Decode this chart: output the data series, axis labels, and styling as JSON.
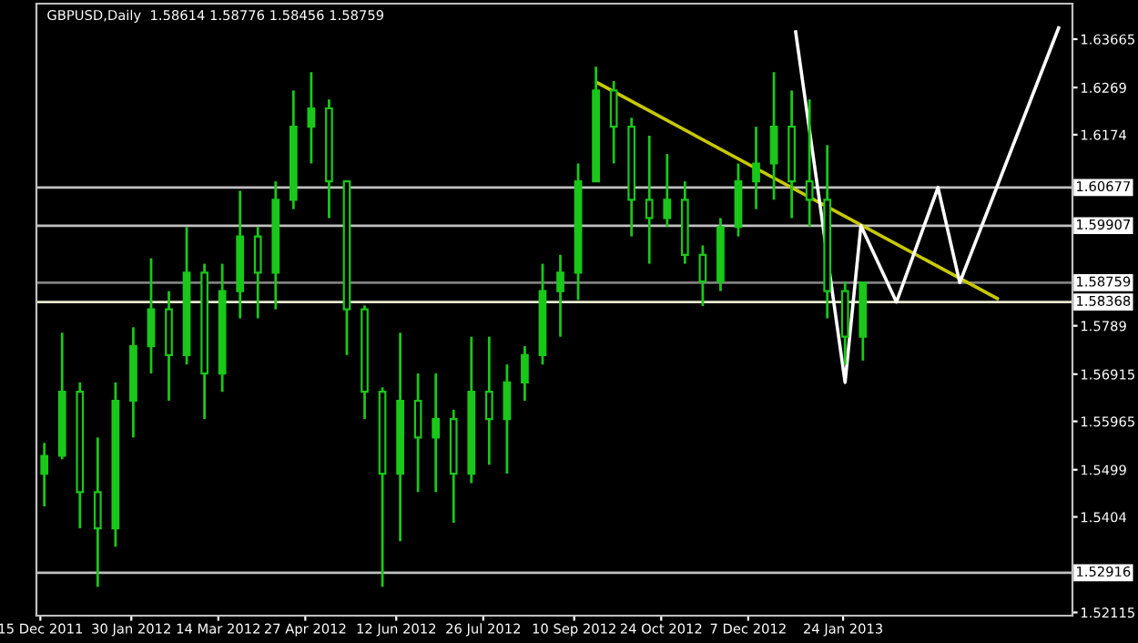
{
  "chart_data": {
    "type": "candlestick",
    "title": "GBPUSD,Daily  1.58614 1.58776 1.58456 1.58759",
    "x": [
      "2011-12-17",
      "2011-12-26",
      "2012-01-04",
      "2012-01-13",
      "2012-01-22",
      "2012-01-31",
      "2012-02-09",
      "2012-02-18",
      "2012-02-27",
      "2012-03-07",
      "2012-03-16",
      "2012-03-25",
      "2012-04-03",
      "2012-04-12",
      "2012-04-21",
      "2012-04-30",
      "2012-05-09",
      "2012-05-18",
      "2012-05-27",
      "2012-06-05",
      "2012-06-14",
      "2012-06-23",
      "2012-07-02",
      "2012-07-11",
      "2012-07-20",
      "2012-07-29",
      "2012-08-07",
      "2012-08-16",
      "2012-08-25",
      "2012-09-03",
      "2012-09-12",
      "2012-09-21",
      "2012-09-30",
      "2012-10-09",
      "2012-10-18",
      "2012-10-27",
      "2012-11-05",
      "2012-11-14",
      "2012-11-23",
      "2012-12-02",
      "2012-12-11",
      "2012-12-20",
      "2012-12-29",
      "2013-01-07",
      "2013-01-16",
      "2013-01-25",
      "2013-02-03"
    ],
    "series": [
      {
        "color": "#19c819",
        "ohlc": [
          [
            1.5491,
            1.5553,
            1.5425,
            1.5527
          ],
          [
            1.5527,
            1.5775,
            1.552,
            1.5656
          ],
          [
            1.5656,
            1.5675,
            1.5381,
            1.5454
          ],
          [
            1.5454,
            1.5564,
            1.5263,
            1.5381
          ],
          [
            1.5381,
            1.5675,
            1.5344,
            1.5638
          ],
          [
            1.5638,
            1.5786,
            1.5564,
            1.5748
          ],
          [
            1.5748,
            1.5925,
            1.5693,
            1.5822
          ],
          [
            1.5822,
            1.5859,
            1.5638,
            1.573
          ],
          [
            1.573,
            1.5988,
            1.5711,
            1.5896
          ],
          [
            1.5896,
            1.5914,
            1.5601,
            1.5693
          ],
          [
            1.5693,
            1.5914,
            1.5656,
            1.5859
          ],
          [
            1.5859,
            1.6061,
            1.5804,
            1.5969
          ],
          [
            1.5969,
            1.5988,
            1.5804,
            1.5896
          ],
          [
            1.5896,
            1.608,
            1.5822,
            1.6043
          ],
          [
            1.6043,
            1.6263,
            1.6024,
            1.619
          ],
          [
            1.619,
            1.63,
            1.6116,
            1.6227
          ],
          [
            1.6227,
            1.6245,
            1.6006,
            1.608
          ],
          [
            1.608,
            1.608,
            1.573,
            1.5822
          ],
          [
            1.5822,
            1.583,
            1.5601,
            1.5656
          ],
          [
            1.5656,
            1.5665,
            1.5263,
            1.5491
          ],
          [
            1.5491,
            1.5775,
            1.5355,
            1.5638
          ],
          [
            1.5638,
            1.5693,
            1.5454,
            1.5564
          ],
          [
            1.5564,
            1.5693,
            1.5454,
            1.5601
          ],
          [
            1.5601,
            1.562,
            1.5392,
            1.5491
          ],
          [
            1.5491,
            1.5767,
            1.5472,
            1.5656
          ],
          [
            1.5656,
            1.5767,
            1.5509,
            1.5601
          ],
          [
            1.5601,
            1.5711,
            1.5491,
            1.5675
          ],
          [
            1.5675,
            1.5748,
            1.5638,
            1.573
          ],
          [
            1.573,
            1.5914,
            1.5711,
            1.5859
          ],
          [
            1.5859,
            1.5932,
            1.5767,
            1.5896
          ],
          [
            1.5896,
            1.6116,
            1.5841,
            1.608
          ],
          [
            1.608,
            1.6311,
            1.608,
            1.6263
          ],
          [
            1.6263,
            1.6282,
            1.6116,
            1.619
          ],
          [
            1.619,
            1.6208,
            1.5969,
            1.6043
          ],
          [
            1.6043,
            1.6172,
            1.5914,
            1.6006
          ],
          [
            1.6006,
            1.6135,
            1.5988,
            1.6043
          ],
          [
            1.6043,
            1.608,
            1.5914,
            1.5932
          ],
          [
            1.5932,
            1.5951,
            1.5829,
            1.5878
          ],
          [
            1.5878,
            1.6006,
            1.5859,
            1.5988
          ],
          [
            1.5988,
            1.6116,
            1.5969,
            1.608
          ],
          [
            1.608,
            1.619,
            1.6024,
            1.6116
          ],
          [
            1.6116,
            1.63,
            1.6043,
            1.619
          ],
          [
            1.619,
            1.6263,
            1.6006,
            1.608
          ],
          [
            1.608,
            1.6245,
            1.5988,
            1.6043
          ],
          [
            1.6043,
            1.6153,
            1.5804,
            1.5859
          ],
          [
            1.5859,
            1.5878,
            1.5711,
            1.5767
          ],
          [
            1.5767,
            1.5878,
            1.5719,
            1.5876
          ]
        ]
      },
      {
        "type": "line",
        "color": "#c8c800",
        "x": [
          "2012-09-22",
          "2013-04-12"
        ],
        "values": [
          1.6278,
          1.5844
        ]
      },
      {
        "type": "line",
        "color": "#ffffff",
        "x": [
          "2012-12-31",
          "2013-01-25",
          "2013-02-02",
          "2013-02-20",
          "2013-03-13",
          "2013-03-24",
          "2013-05-13"
        ],
        "values": [
          1.6381,
          1.5675,
          1.59907,
          1.58368,
          1.60677,
          1.58759,
          1.6389
        ]
      }
    ],
    "ref_lines": [
      {
        "axis": "y",
        "value": 1.60677,
        "label": "1.60677",
        "color": "#c0c0c0"
      },
      {
        "axis": "y",
        "value": 1.59907,
        "label": "1.59907",
        "color": "#c0c0c0"
      },
      {
        "axis": "y",
        "value": 1.58759,
        "label": "1.58759",
        "color": "#808080"
      },
      {
        "axis": "y",
        "value": 1.58368,
        "label": "1.58368",
        "color": "#e8e8d0"
      },
      {
        "axis": "y",
        "value": 1.52916,
        "label": "1.52916",
        "color": "#c0c0c0"
      }
    ],
    "xlim": [
      "2011-12-13",
      "2013-05-20"
    ],
    "ylim": [
      1.5205,
      1.6438
    ],
    "xticks": [
      {
        "value": "2011-12-15",
        "label": "15 Dec 2011"
      },
      {
        "value": "2012-01-30",
        "label": "30 Jan 2012"
      },
      {
        "value": "2012-03-14",
        "label": "14 Mar 2012"
      },
      {
        "value": "2012-04-27",
        "label": "27 Apr 2012"
      },
      {
        "value": "2012-06-12",
        "label": "12 Jun 2012"
      },
      {
        "value": "2012-07-26",
        "label": "26 Jul 2012"
      },
      {
        "value": "2012-09-10",
        "label": "10 Sep 2012"
      },
      {
        "value": "2012-10-24",
        "label": "24 Oct 2012"
      },
      {
        "value": "2012-12-07",
        "label": "7 Dec 2012"
      },
      {
        "value": "2013-01-24",
        "label": "24 Jan 2013"
      }
    ],
    "yticks": [
      1.63665,
      1.6269,
      1.6174,
      1.5789,
      1.56915,
      1.55965,
      1.5499,
      1.5404,
      1.52115
    ],
    "grid": false,
    "legend": false
  }
}
